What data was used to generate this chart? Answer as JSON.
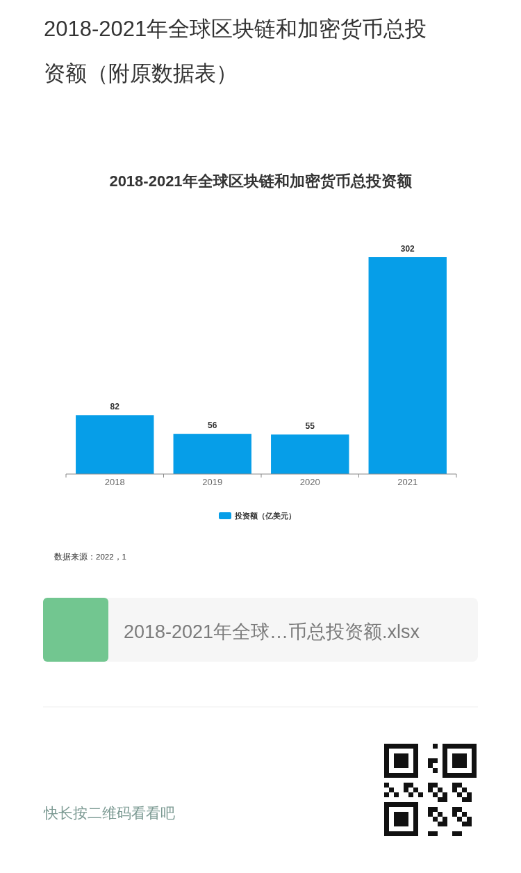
{
  "chart_data": {
    "type": "bar",
    "title": "2018-2021年全球区块链和加密货币总投资额（附原数据表）",
    "subtitle": "2018-2021年全球区块链和加密货币总投资额",
    "categories": [
      "2018",
      "2019",
      "2020",
      "2021"
    ],
    "series": [
      {
        "name": "投资额（亿美元）",
        "color": "#069ee8",
        "values": [
          82,
          56,
          55,
          302
        ]
      }
    ],
    "data_labels": true,
    "legend": "bottom",
    "annotations": [
      "数据来源：2022，1",
      "2018-2021年全球…币总投资额.xlsx",
      "快长按二维码看看吧"
    ]
  }
}
